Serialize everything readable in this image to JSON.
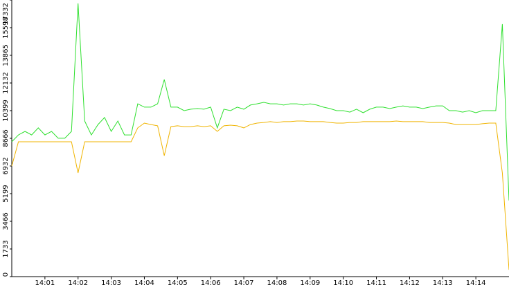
{
  "chart_data": {
    "type": "line",
    "categories": [
      null,
      null,
      null,
      null,
      null,
      "14:01",
      null,
      null,
      null,
      null,
      "14:02",
      null,
      null,
      null,
      null,
      "14:03",
      null,
      null,
      null,
      null,
      "14:04",
      null,
      null,
      null,
      null,
      "14:05",
      null,
      null,
      null,
      null,
      "14:06",
      null,
      null,
      null,
      null,
      "14:07",
      null,
      null,
      null,
      null,
      "14:08",
      null,
      null,
      null,
      null,
      "14:09",
      null,
      null,
      null,
      null,
      "14:10",
      null,
      null,
      null,
      null,
      "14:11",
      null,
      null,
      null,
      null,
      "14:12",
      null,
      null,
      null,
      null,
      "14:13",
      null,
      null,
      null,
      null,
      "14:14",
      null,
      null,
      null,
      null,
      null
    ],
    "series": [
      {
        "color": "#2ee02e",
        "values": [
          8450,
          8880,
          9100,
          8880,
          9320,
          8880,
          9100,
          8670,
          8670,
          9100,
          17120,
          9750,
          8880,
          9530,
          9970,
          9100,
          9750,
          8880,
          8880,
          10830,
          10620,
          10620,
          10830,
          12350,
          10620,
          10620,
          10400,
          10490,
          10530,
          10490,
          10620,
          9320,
          10490,
          10400,
          10620,
          10490,
          10750,
          10830,
          10920,
          10830,
          10830,
          10750,
          10830,
          10830,
          10750,
          10830,
          10750,
          10620,
          10530,
          10400,
          10400,
          10310,
          10490,
          10270,
          10490,
          10620,
          10620,
          10530,
          10620,
          10700,
          10620,
          10620,
          10530,
          10620,
          10700,
          10700,
          10400,
          10400,
          10310,
          10400,
          10270,
          10400,
          10400,
          10400,
          15820,
          4770
        ]
      },
      {
        "color": "#f0b400",
        "values": [
          6930,
          8450,
          8450,
          8450,
          8450,
          8450,
          8450,
          8450,
          8450,
          8450,
          6500,
          8450,
          8450,
          8450,
          8450,
          8450,
          8450,
          8450,
          8450,
          9320,
          9620,
          9530,
          9450,
          7580,
          9400,
          9450,
          9400,
          9400,
          9450,
          9400,
          9450,
          9100,
          9450,
          9490,
          9450,
          9320,
          9530,
          9620,
          9660,
          9710,
          9660,
          9710,
          9710,
          9750,
          9750,
          9710,
          9710,
          9710,
          9660,
          9620,
          9620,
          9660,
          9660,
          9710,
          9710,
          9710,
          9710,
          9710,
          9750,
          9710,
          9710,
          9710,
          9710,
          9660,
          9660,
          9660,
          9620,
          9530,
          9530,
          9530,
          9530,
          9580,
          9620,
          9620,
          6500,
          430
        ]
      }
    ],
    "ylim": [
      0,
      17332
    ],
    "yticks": [
      0,
      1733,
      3466,
      5199,
      6932,
      8666,
      10399,
      12132,
      13865,
      15598,
      17332
    ],
    "grid": false
  }
}
